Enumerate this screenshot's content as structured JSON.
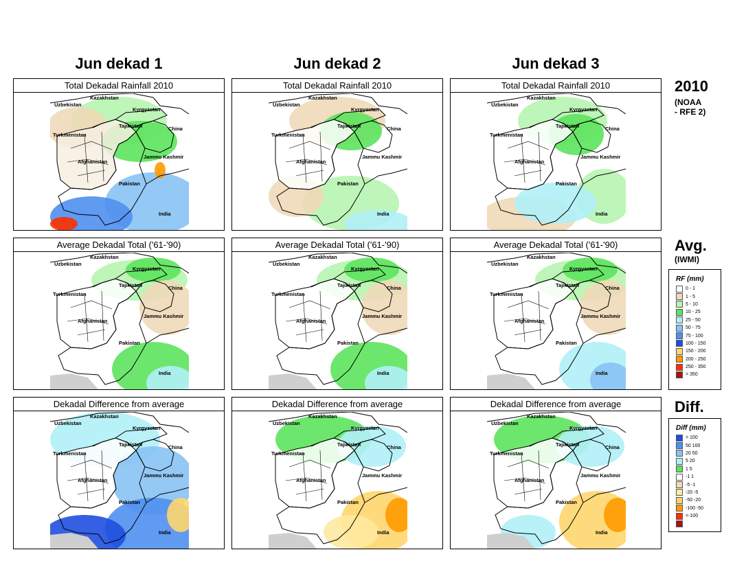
{
  "columns": [
    {
      "header": "Jun dekad 1"
    },
    {
      "header": "Jun dekad 2"
    },
    {
      "header": "Jun dekad 3"
    }
  ],
  "rows": [
    {
      "panel_title": "Total Dekadal Rainfall 2010",
      "label_main": "2010",
      "label_sub": "(NOAA\n- RFE 2)"
    },
    {
      "panel_title": "Average Dekadal Total ('61-'90)",
      "label_main": "Avg.",
      "label_sub": "(IWMI)"
    },
    {
      "panel_title": "Dekadal Difference from average",
      "label_main": "Diff.",
      "label_sub": ""
    }
  ],
  "map_labels": {
    "kazakhstan": "Kazakhstan",
    "uzbekistan": "Uzbekistan",
    "kyrgyzstan": "Kyrgyzstan",
    "tajikistan": "Tajikistan",
    "china": "China",
    "turkmenistan": "Turkmenistan",
    "afghanistan": "Afghanistan",
    "jammu_kashmir": "Jammu Kashmir",
    "pakistan": "Pakistan",
    "india": "India"
  },
  "rf_legend": {
    "title": "RF (mm)",
    "items": [
      {
        "label": "0 - 1",
        "color": "#ffffff"
      },
      {
        "label": "1 - 5",
        "color": "#f0d9b8"
      },
      {
        "label": "5 - 10",
        "color": "#b7f4b0"
      },
      {
        "label": "10 - 25",
        "color": "#5de35d"
      },
      {
        "label": "25 - 50",
        "color": "#b0f0f6"
      },
      {
        "label": "50 - 75",
        "color": "#88c2f4"
      },
      {
        "label": "75 - 100",
        "color": "#4f8ff0"
      },
      {
        "label": "100 - 150",
        "color": "#1f4fe0"
      },
      {
        "label": "150 - 200",
        "color": "#ffd66e"
      },
      {
        "label": "200 - 250",
        "color": "#ff9a00"
      },
      {
        "label": "250 - 350",
        "color": "#ff3000"
      },
      {
        "label": "> 350",
        "color": "#a01515"
      }
    ]
  },
  "diff_legend": {
    "title": "Diff (mm)",
    "items": [
      {
        "label": "> 100",
        "color": "#1f4fe0"
      },
      {
        "label": "50  100",
        "color": "#4f8ff0"
      },
      {
        "label": "20  50",
        "color": "#88c2f4"
      },
      {
        "label": "5  20",
        "color": "#b0f0f6"
      },
      {
        "label": "1  5",
        "color": "#5de35d"
      },
      {
        "label": "-1  1",
        "color": "#ffffff"
      },
      {
        "label": "-5  -1",
        "color": "#f0d9b8"
      },
      {
        "label": "-20  -5",
        "color": "#ffe9a0"
      },
      {
        "label": "-50  -20",
        "color": "#ffd66e"
      },
      {
        "label": "-100  -50",
        "color": "#ff9a00"
      },
      {
        "label": "<-100",
        "color": "#ff3000"
      },
      {
        "label": "",
        "color": "#a01515"
      }
    ]
  }
}
